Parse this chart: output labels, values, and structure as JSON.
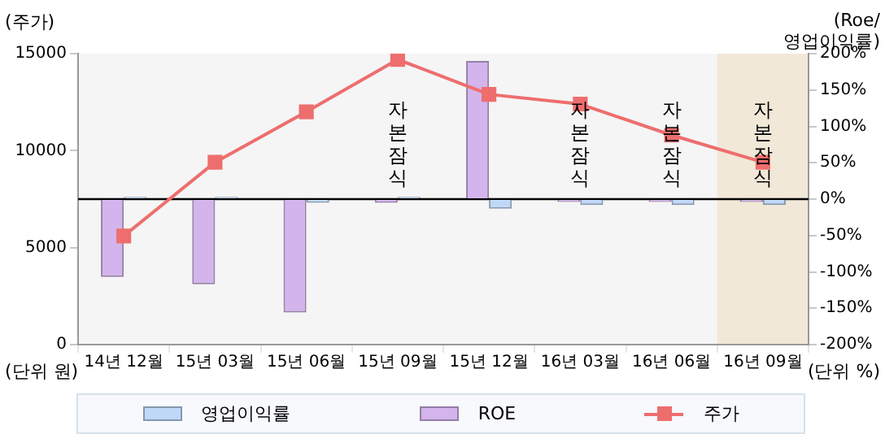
{
  "chart_data": {
    "type": "bar",
    "categories": [
      "14년 12월",
      "15년 03월",
      "15년 06월",
      "15년 09월",
      "15년 12월",
      "16년 03월",
      "16년 06월",
      "16년 09월"
    ],
    "series": [
      {
        "name": "영업이익률",
        "axis": "y2",
        "color": "#c0d8f8",
        "values": [
          3,
          3,
          -5,
          3,
          -13,
          -8,
          -8,
          -8
        ]
      },
      {
        "name": "ROE",
        "axis": "y2",
        "color": "#d4b4ec",
        "values": [
          -107,
          -117,
          -156,
          -5,
          190,
          -4,
          -4,
          -4
        ]
      },
      {
        "name": "주가",
        "type": "line",
        "color": "#ee6e6e",
        "marker": "square",
        "values": [
          5600,
          9400,
          12000,
          14700,
          12900,
          12400,
          10800,
          9400
        ]
      }
    ],
    "ylabel": "(주가)",
    "y2label": "(Roe/\n영업이익률)",
    "ylim": [
      0,
      15000
    ],
    "yticks": [
      0,
      5000,
      10000,
      15000
    ],
    "y2lim": [
      -200,
      200
    ],
    "y2ticks": [
      {
        "value": -200,
        "label": "-200%"
      },
      {
        "value": -150,
        "label": "-150%"
      },
      {
        "value": -100,
        "label": "-100%"
      },
      {
        "value": -50,
        "label": "-50%"
      },
      {
        "value": 0,
        "label": "0%"
      },
      {
        "value": 50,
        "label": "50%"
      },
      {
        "value": 100,
        "label": "100%"
      },
      {
        "value": 150,
        "label": "150%"
      },
      {
        "value": 200,
        "label": "200%"
      }
    ],
    "ref_lines": [
      {
        "axis": "y2",
        "value": 0,
        "color": "#000000"
      }
    ],
    "bands": [
      {
        "axis": "x",
        "from": "16년 09월",
        "to": "16년 09월",
        "color": "#f2e8d8"
      }
    ],
    "annotations": [
      "(단위 원)",
      "(단위 %)",
      "자본잠식",
      "자본잠식",
      "자본잠식",
      "자본잠식"
    ],
    "grid": false,
    "legend": "bottom"
  }
}
